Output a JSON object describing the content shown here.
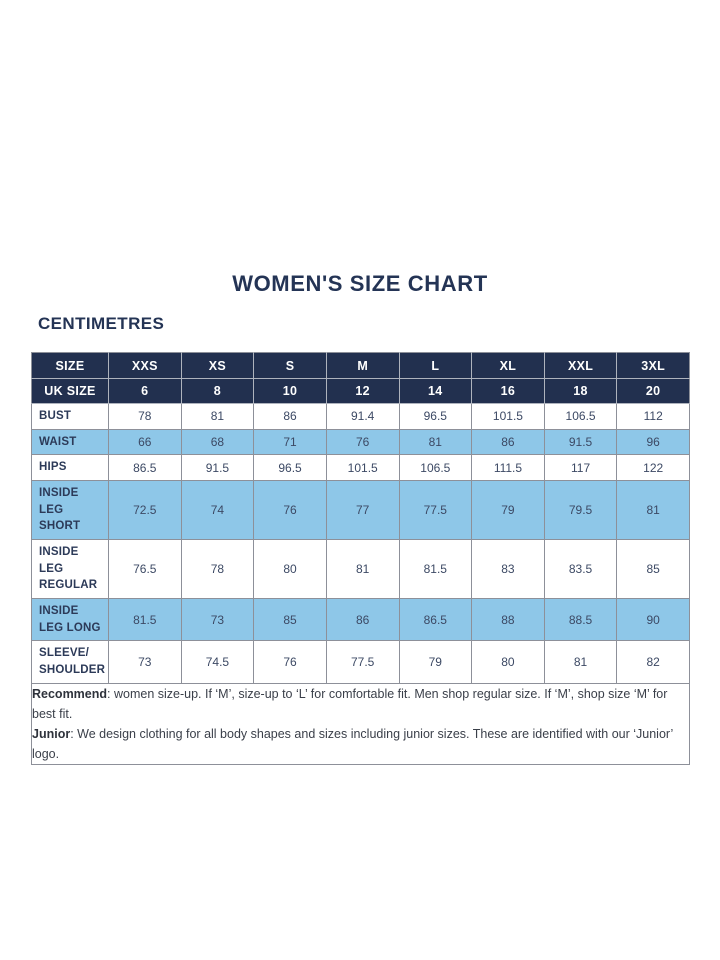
{
  "page": {
    "title": "WOMEN'S SIZE CHART",
    "subtitle": "CENTIMETRES"
  },
  "table": {
    "size_row": {
      "label": "SIZE",
      "values": [
        "XXS",
        "XS",
        "S",
        "M",
        "L",
        "XL",
        "XXL",
        "3XL"
      ]
    },
    "uk_size_row": {
      "label": "UK SIZE",
      "values": [
        "6",
        "8",
        "10",
        "12",
        "14",
        "16",
        "18",
        "20"
      ]
    },
    "rows": [
      {
        "label": "BUST",
        "shade": false,
        "values": [
          "78",
          "81",
          "86",
          "91.4",
          "96.5",
          "101.5",
          "106.5",
          "112"
        ]
      },
      {
        "label": "WAIST",
        "shade": true,
        "values": [
          "66",
          "68",
          "71",
          "76",
          "81",
          "86",
          "91.5",
          "96"
        ]
      },
      {
        "label": "HIPS",
        "shade": false,
        "values": [
          "86.5",
          "91.5",
          "96.5",
          "101.5",
          "106.5",
          "111.5",
          "117",
          "122"
        ]
      },
      {
        "label": "INSIDE LEG SHORT",
        "shade": true,
        "values": [
          "72.5",
          "74",
          "76",
          "77",
          "77.5",
          "79",
          "79.5",
          "81"
        ]
      },
      {
        "label": "INSIDE LEG REGULAR",
        "shade": false,
        "values": [
          "76.5",
          "78",
          "80",
          "81",
          "81.5",
          "83",
          "83.5",
          "85"
        ]
      },
      {
        "label": "INSIDE LEG LONG",
        "shade": true,
        "values": [
          "81.5",
          "73",
          "85",
          "86",
          "86.5",
          "88",
          "88.5",
          "90"
        ]
      },
      {
        "label": "SLEEVE/ SHOULDER",
        "shade": false,
        "values": [
          "73",
          "74.5",
          "76",
          "77.5",
          "79",
          "80",
          "81",
          "82"
        ]
      }
    ],
    "footnote": [
      {
        "bold": "Recommend",
        "text": ": women size-up. If ‘M’, size-up to ‘L’ for comfortable fit. Men shop regular size. If ‘M’, shop size ‘M’ for best fit."
      },
      {
        "bold": "Junior",
        "text": ": We design clothing for all body shapes and sizes including junior sizes. These are identified with our ‘Junior’ logo."
      }
    ]
  },
  "colors": {
    "navy": "#22304f",
    "light_blue": "#8ec7e8",
    "text_navy": "#2c3a58",
    "border_grey": "#8d9099",
    "background": "#ffffff"
  }
}
